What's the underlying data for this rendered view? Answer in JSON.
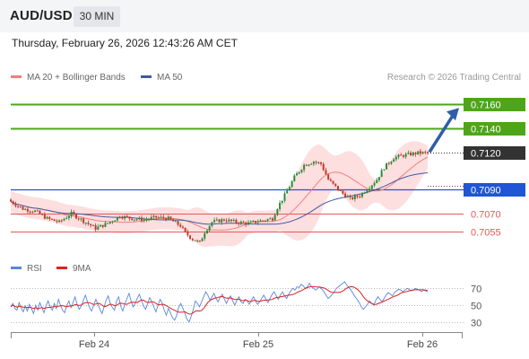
{
  "header": {
    "pair": "AUD/USD",
    "timeframe": "30 MIN",
    "datetime": "Thursday, February 26, 2026 12:43:26 AM CET",
    "copyright": "Research © 2026 Trading Central"
  },
  "legend": {
    "ma20_label": "MA 20 + Bollinger Bands",
    "ma50_label": "MA 50",
    "rsi_label": "RSI",
    "ma9_label": "9MA"
  },
  "colors": {
    "candle_up": "#2a8a3a",
    "candle_down": "#c0392b",
    "ma20": "#f08080",
    "ma50": "#3d5aa8",
    "bollinger_fill": "#fdd9d9",
    "resistance": "#4da61a",
    "support_blue": "#1f55d6",
    "support_red": "#e35a5a",
    "current": "#333333",
    "arrow": "#2f5ea8",
    "rsi": "#5b86d9",
    "rsi_ma": "#e02020"
  },
  "chart_data": [
    {
      "type": "candlestick",
      "x_labels": [
        "Feb 24",
        "Feb 25",
        "Feb 26"
      ],
      "y_range": [
        7039,
        7172
      ],
      "current_price": "0.7120",
      "levels": [
        {
          "value": "0.7160",
          "price": 7160,
          "kind": "resistance"
        },
        {
          "value": "0.7140",
          "price": 7140,
          "kind": "resistance"
        },
        {
          "value": "0.7120",
          "price": 7120,
          "kind": "current"
        },
        {
          "value": "0.7090",
          "price": 7090,
          "kind": "pivot"
        },
        {
          "value": "0.7070",
          "price": 7070,
          "kind": "support"
        },
        {
          "value": "0.7055",
          "price": 7055,
          "kind": "support"
        }
      ],
      "close_path": [
        [
          0,
          7080
        ],
        [
          5,
          7074
        ],
        [
          10,
          7072
        ],
        [
          15,
          7066
        ],
        [
          20,
          7063
        ],
        [
          25,
          7070
        ],
        [
          30,
          7064
        ],
        [
          35,
          7058
        ],
        [
          40,
          7062
        ],
        [
          45,
          7068
        ],
        [
          50,
          7066
        ],
        [
          55,
          7065
        ],
        [
          60,
          7067
        ],
        [
          65,
          7066
        ],
        [
          70,
          7060
        ],
        [
          72,
          7054
        ],
        [
          75,
          7049
        ],
        [
          78,
          7046
        ],
        [
          80,
          7055
        ],
        [
          83,
          7063
        ],
        [
          88,
          7065
        ],
        [
          93,
          7063
        ],
        [
          98,
          7062
        ],
        [
          103,
          7064
        ],
        [
          108,
          7066
        ],
        [
          110,
          7075
        ],
        [
          113,
          7085
        ],
        [
          117,
          7100
        ],
        [
          121,
          7110
        ],
        [
          125,
          7113
        ],
        [
          128,
          7111
        ],
        [
          131,
          7098
        ],
        [
          136,
          7088
        ],
        [
          140,
          7082
        ],
        [
          144,
          7085
        ],
        [
          148,
          7092
        ],
        [
          151,
          7098
        ],
        [
          154,
          7108
        ],
        [
          158,
          7116
        ],
        [
          162,
          7118
        ],
        [
          168,
          7120
        ],
        [
          172,
          7120
        ]
      ],
      "projection_target": 7160
    },
    {
      "type": "line",
      "name": "RSI",
      "y_ticks": [
        70,
        50,
        30
      ],
      "y_range": [
        20,
        80
      ],
      "values": [
        48,
        52,
        46,
        44,
        53,
        47,
        42,
        49,
        43,
        51,
        46,
        40,
        50,
        44,
        53,
        47,
        41,
        49,
        55,
        48,
        44,
        52,
        46,
        57,
        50,
        44,
        41,
        50,
        55,
        47,
        53,
        60,
        51,
        45,
        49,
        56,
        62,
        54,
        47,
        43,
        50,
        57,
        51,
        45,
        40,
        48,
        56,
        61,
        52,
        47,
        44,
        55,
        60,
        49,
        43,
        51,
        58,
        64,
        55,
        48,
        52,
        58,
        63,
        56,
        49,
        45,
        52,
        59,
        54,
        48,
        42,
        50,
        57,
        52,
        44,
        38,
        46,
        41,
        35,
        32,
        38,
        48,
        52,
        46,
        40,
        33,
        30,
        37,
        45,
        55,
        52,
        48,
        54,
        60,
        66,
        62,
        56,
        60,
        64,
        58,
        54,
        60,
        63,
        57,
        52,
        58,
        61,
        55,
        50,
        56,
        60,
        54,
        52,
        57,
        55,
        51,
        56,
        60,
        55,
        51,
        54,
        58,
        62,
        57,
        53,
        58,
        63,
        66,
        61,
        57,
        62,
        66,
        61,
        58,
        63,
        67,
        70,
        68,
        72,
        71,
        75,
        73,
        70,
        72,
        76,
        72,
        70,
        68,
        70,
        72,
        69,
        66,
        62,
        58,
        60,
        63,
        66,
        70,
        72,
        74,
        76,
        78,
        74,
        71,
        68,
        64,
        60,
        57,
        53,
        48,
        45,
        48,
        51,
        55,
        52,
        50,
        56,
        60,
        57,
        54,
        58,
        62,
        65,
        63,
        61,
        65,
        67,
        69,
        68,
        66,
        68,
        70,
        69,
        67,
        68,
        70,
        69,
        68,
        66,
        68,
        67,
        66
      ]
    }
  ]
}
